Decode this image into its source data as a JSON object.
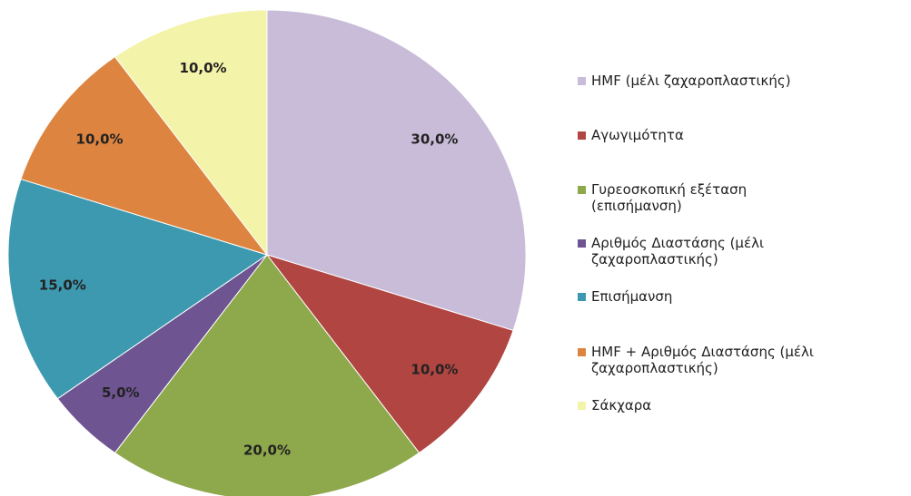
{
  "chart_data": {
    "type": "pie",
    "categories": [
      "HMF (μέλι ζαχαροπλαστικής)",
      "Αγωγιμότητα",
      "Γυρεοσκοπική εξέταση (επισήμανση)",
      "Αριθμός Διαστάσης (μέλι ζαχαροπλαστικής)",
      "Επισήμανση",
      "HMF + Αριθμός Διαστάσης (μέλι ζαχαροπλαστικής)",
      "Σάκχαρα"
    ],
    "values": [
      30,
      10,
      20,
      5,
      15,
      10,
      10
    ],
    "value_labels": [
      "30,0%",
      "10,0%",
      "20,0%",
      "5,0%",
      "15,0%",
      "10,0%",
      "10,0%"
    ],
    "colors": [
      "#c9bcd9",
      "#b04541",
      "#8ea84c",
      "#6e5491",
      "#3d99b0",
      "#dd8540",
      "#f3f3a9"
    ],
    "legend": "right"
  }
}
